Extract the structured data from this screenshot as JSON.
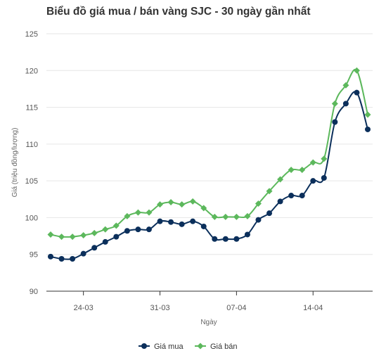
{
  "chart_data": {
    "type": "line",
    "title": "Biểu đồ giá mua / bán vàng SJC - 30 ngày gần nhất",
    "xlabel": "Ngày",
    "ylabel": "Giá (triệu đồng/lượng)",
    "ylim": [
      90,
      125
    ],
    "y_ticks": [
      90,
      95,
      100,
      105,
      110,
      115,
      120,
      125
    ],
    "x_tick_labels": [
      {
        "label": "24-03",
        "index": 3
      },
      {
        "label": "31-03",
        "index": 10
      },
      {
        "label": "07-04",
        "index": 17
      },
      {
        "label": "14-04",
        "index": 24
      }
    ],
    "x_count": 30,
    "grid": "horizontal",
    "legend_position": "bottom",
    "series": [
      {
        "name": "Giá mua",
        "color": "#0b2f5b",
        "marker": "circle",
        "values": [
          94.7,
          94.4,
          94.4,
          95.1,
          95.9,
          96.7,
          97.4,
          98.2,
          98.4,
          98.4,
          99.5,
          99.4,
          99.1,
          99.5,
          98.8,
          97.1,
          97.1,
          97.1,
          97.7,
          99.7,
          100.6,
          102.2,
          103.0,
          103.0,
          105.0,
          105.4,
          113.0,
          115.5,
          117.0,
          112.0
        ]
      },
      {
        "name": "Giá bán",
        "color": "#5cb85c",
        "marker": "diamond",
        "values": [
          97.7,
          97.4,
          97.4,
          97.6,
          97.9,
          98.4,
          98.9,
          100.2,
          100.7,
          100.7,
          101.8,
          102.1,
          101.8,
          102.2,
          101.3,
          100.1,
          100.1,
          100.1,
          100.2,
          101.9,
          103.6,
          105.2,
          106.5,
          106.5,
          107.5,
          108.0,
          115.5,
          118.0,
          120.0,
          114.0
        ]
      }
    ]
  }
}
